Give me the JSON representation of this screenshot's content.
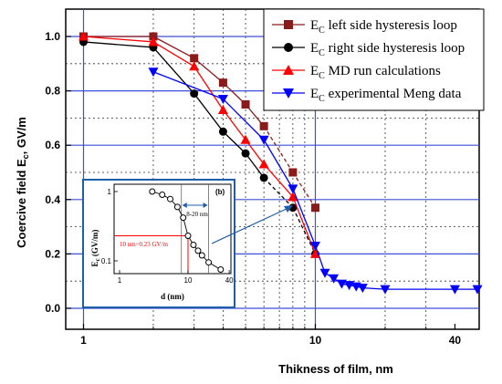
{
  "chart_data": [
    {
      "type": "line",
      "xlabel": "Thikness of film, nm",
      "ylabel": "Coercive  field E",
      "ylabel_sub": "c",
      "ylabel_unit": ", GV/m",
      "x_scale": "log",
      "xlim": [
        1,
        50
      ],
      "ylim": [
        -0.05,
        1.1
      ],
      "x_ticks": [
        1,
        10,
        40
      ],
      "x_tick_labels": [
        "1",
        "10",
        "40"
      ],
      "y_ticks": [
        0.0,
        0.2,
        0.4,
        0.6,
        0.8,
        1.0
      ],
      "y_tick_labels": [
        "0.0",
        "0.2",
        "0.4",
        "0.6",
        "0.8",
        "1.0"
      ],
      "grid": true,
      "legend_position": "top-right",
      "series": [
        {
          "name": "left side hysteresis loop",
          "name_prefix": "E",
          "name_sub": "C",
          "color": "#8b1a1a",
          "marker": "square",
          "line": "solid-then-dashed",
          "x": [
            1,
            2,
            3,
            4,
            5,
            6,
            8,
            10
          ],
          "y": [
            1.0,
            1.0,
            0.92,
            0.83,
            0.75,
            0.67,
            0.5,
            0.37
          ]
        },
        {
          "name": "right side hysteresis loop",
          "name_prefix": "E",
          "name_sub": "C",
          "color": "#000000",
          "marker": "circle",
          "line": "solid-then-dashed",
          "x": [
            1,
            2,
            3,
            4,
            5,
            6,
            8,
            10
          ],
          "y": [
            0.98,
            0.96,
            0.79,
            0.65,
            0.57,
            0.48,
            0.37,
            0.2
          ]
        },
        {
          "name": "MD run calculations",
          "name_prefix": "E",
          "name_sub": "C",
          "color": "#ff0000",
          "marker": "triangle-up",
          "line": "solid",
          "x": [
            1,
            2,
            3,
            4,
            5,
            6,
            8,
            10
          ],
          "y": [
            1.0,
            0.98,
            0.89,
            0.73,
            0.62,
            0.53,
            0.41,
            0.2
          ]
        },
        {
          "name": "experimental Meng data",
          "name_prefix": "E",
          "name_sub": "C",
          "color": "#0000ff",
          "marker": "triangle-down",
          "line": "solid",
          "x": [
            2,
            4,
            6,
            8,
            10,
            11,
            12,
            13,
            14,
            15,
            16,
            20,
            40,
            50
          ],
          "y": [
            0.87,
            0.77,
            0.62,
            0.44,
            0.23,
            0.13,
            0.11,
            0.09,
            0.085,
            0.08,
            0.075,
            0.07,
            0.07,
            0.07
          ]
        }
      ]
    },
    {
      "type": "scatter",
      "label": "(b)",
      "xlabel": "d (nm)",
      "ylabel": "E",
      "ylabel_sub": "c",
      "ylabel_unit": " (GV/m)",
      "x_scale": "log",
      "y_scale": "log",
      "xlim": [
        1,
        50
      ],
      "ylim": [
        0.05,
        1.2
      ],
      "x_tick_labels": [
        "1",
        "10",
        "40"
      ],
      "y_tick_labels": [
        "1",
        "0.1"
      ],
      "annotation_range": "8-20 nm",
      "annotation_point": "10 nm~0.23 GV/m",
      "x": [
        3,
        4.2,
        5.5,
        7,
        8.5,
        10,
        12,
        14,
        16,
        20,
        30
      ],
      "y": [
        1.0,
        0.9,
        0.78,
        0.6,
        0.42,
        0.23,
        0.17,
        0.14,
        0.12,
        0.095,
        0.075
      ]
    }
  ]
}
